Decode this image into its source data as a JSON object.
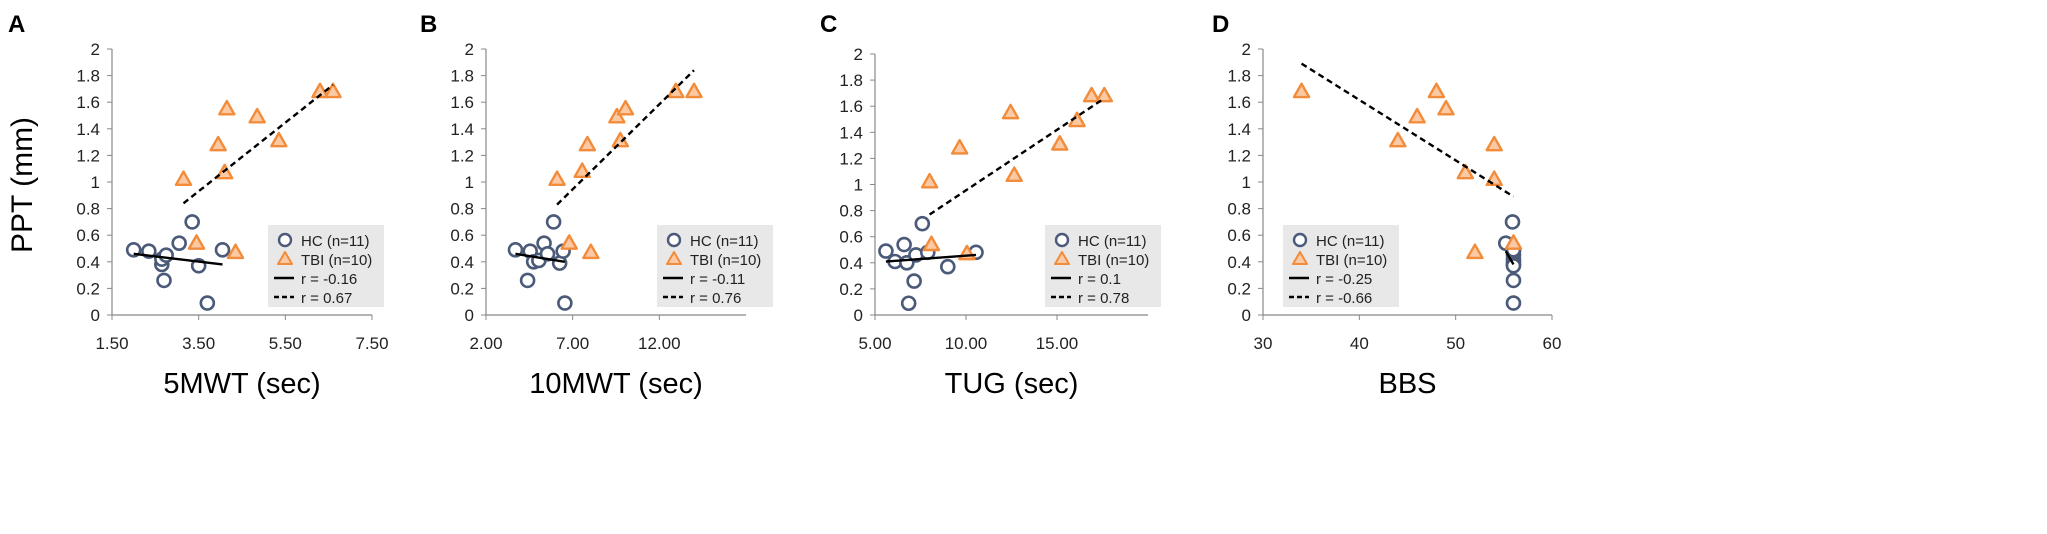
{
  "shared_ylabel": "PPT (mm)",
  "legend": {
    "hc_label": "HC (n=11)",
    "tbi_label": "TBI (n=10)"
  },
  "colors": {
    "hc": "#4a5a78",
    "tbi": "#f28c3a",
    "line": "#000000",
    "legend_bg": "#e8e8e8",
    "axis": "#888888"
  },
  "chart_data": [
    {
      "type": "scatter",
      "panel_label": "A",
      "xlabel": "5MWT (sec)",
      "ylabel": "PPT (mm)",
      "xlim": [
        1.5,
        7.5
      ],
      "xticks": [
        "1.50",
        "3.50",
        "5.50",
        "7.50"
      ],
      "ylim": [
        0,
        2
      ],
      "yticks": [
        "0",
        "0.2",
        "0.4",
        "0.6",
        "0.8",
        "1",
        "1.2",
        "1.4",
        "1.6",
        "1.8",
        "2"
      ],
      "series": [
        {
          "name": "HC (n=11)",
          "marker": "circle",
          "x": [
            2.0,
            2.35,
            2.65,
            2.65,
            2.75,
            2.7,
            3.05,
            3.35,
            3.5,
            3.7,
            4.05
          ],
          "y": [
            0.49,
            0.48,
            0.38,
            0.42,
            0.45,
            0.26,
            0.54,
            0.7,
            0.37,
            0.09,
            0.49
          ]
        },
        {
          "name": "TBI (n=10)",
          "marker": "triangle",
          "x": [
            3.15,
            3.45,
            3.95,
            4.1,
            4.15,
            4.35,
            4.85,
            5.35,
            6.3,
            6.6
          ],
          "y": [
            1.02,
            0.54,
            1.28,
            1.07,
            1.55,
            0.47,
            1.49,
            1.31,
            1.68,
            1.68
          ]
        }
      ],
      "fits": [
        {
          "series": "HC (n=11)",
          "style": "solid",
          "label": "r = -0.16",
          "x": [
            2.0,
            4.05
          ],
          "y": [
            0.46,
            0.38
          ]
        },
        {
          "series": "TBI (n=10)",
          "style": "dashed",
          "label": "r = 0.67",
          "x": [
            3.15,
            6.6
          ],
          "y": [
            0.84,
            1.73
          ]
        }
      ]
    },
    {
      "type": "scatter",
      "panel_label": "B",
      "xlabel": "10MWT (sec)",
      "ylabel": "",
      "xlim": [
        2.0,
        17.0
      ],
      "xticks": [
        "2.00",
        "7.00",
        "12.00"
      ],
      "ylim": [
        0,
        2
      ],
      "yticks": [
        "0",
        "0.2",
        "0.4",
        "0.6",
        "0.8",
        "1",
        "1.2",
        "1.4",
        "1.6",
        "1.8",
        "2"
      ],
      "series": [
        {
          "name": "HC (n=11)",
          "marker": "circle",
          "x": [
            3.7,
            4.4,
            4.55,
            4.75,
            5.05,
            5.35,
            5.55,
            5.9,
            6.25,
            6.45,
            6.55
          ],
          "y": [
            0.49,
            0.26,
            0.48,
            0.4,
            0.41,
            0.54,
            0.46,
            0.7,
            0.39,
            0.48,
            0.09
          ]
        },
        {
          "name": "TBI (n=10)",
          "marker": "triangle",
          "x": [
            6.1,
            6.8,
            7.55,
            7.85,
            8.05,
            9.55,
            9.75,
            10.05,
            12.95,
            14.0
          ],
          "y": [
            1.02,
            0.54,
            1.08,
            1.28,
            0.47,
            1.49,
            1.31,
            1.55,
            1.68,
            1.68
          ]
        }
      ],
      "fits": [
        {
          "series": "HC (n=11)",
          "style": "solid",
          "label": "r = -0.11",
          "x": [
            3.7,
            6.55
          ],
          "y": [
            0.46,
            0.4
          ]
        },
        {
          "series": "TBI (n=10)",
          "style": "dashed",
          "label": "r =  0.76",
          "x": [
            6.1,
            14.0
          ],
          "y": [
            0.83,
            1.84
          ]
        }
      ]
    },
    {
      "type": "scatter",
      "panel_label": "C",
      "xlabel": "TUG (sec)",
      "ylabel": "",
      "xlim": [
        5.0,
        20.0
      ],
      "xticks": [
        "5.00",
        "10.00",
        "15.00"
      ],
      "ylim": [
        0,
        2
      ],
      "yticks": [
        "0",
        "0.2",
        "0.4",
        "0.6",
        "0.8",
        "1",
        "1.2",
        "1.4",
        "1.6",
        "1.8",
        "2"
      ],
      "series": [
        {
          "name": "HC (n=11)",
          "marker": "circle",
          "x": [
            5.6,
            6.1,
            6.6,
            6.75,
            6.85,
            7.15,
            7.25,
            7.6,
            7.9,
            9.0,
            10.55
          ],
          "y": [
            0.49,
            0.41,
            0.54,
            0.4,
            0.09,
            0.26,
            0.46,
            0.7,
            0.48,
            0.37,
            0.48
          ]
        },
        {
          "name": "TBI (n=10)",
          "marker": "triangle",
          "x": [
            8.0,
            8.1,
            9.65,
            10.05,
            12.45,
            12.65,
            15.15,
            16.1,
            16.9,
            17.6
          ],
          "y": [
            1.02,
            0.54,
            1.28,
            0.47,
            1.55,
            1.07,
            1.31,
            1.49,
            1.68,
            1.68
          ]
        }
      ],
      "fits": [
        {
          "series": "HC (n=11)",
          "style": "solid",
          "label": "r = 0.1",
          "x": [
            5.6,
            10.55
          ],
          "y": [
            0.41,
            0.46
          ]
        },
        {
          "series": "TBI (n=10)",
          "style": "dashed",
          "label": "r = 0.78",
          "x": [
            8.0,
            17.6
          ],
          "y": [
            0.77,
            1.66
          ]
        }
      ]
    },
    {
      "type": "scatter",
      "panel_label": "D",
      "xlabel": "BBS",
      "ylabel": "",
      "xlim": [
        30,
        60
      ],
      "xticks": [
        "30",
        "40",
        "50",
        "60"
      ],
      "ylim": [
        0,
        2
      ],
      "yticks": [
        "0",
        "0.2",
        "0.4",
        "0.6",
        "0.8",
        "1",
        "1.2",
        "1.4",
        "1.6",
        "1.8",
        "2"
      ],
      "series": [
        {
          "name": "HC (n=11)",
          "marker": "circle",
          "x": [
            55.2,
            55.9,
            56,
            56,
            56,
            56,
            56,
            56,
            56,
            56,
            56
          ],
          "y": [
            0.54,
            0.7,
            0.48,
            0.45,
            0.42,
            0.4,
            0.38,
            0.37,
            0.49,
            0.26,
            0.09
          ]
        },
        {
          "name": "TBI (n=10)",
          "marker": "triangle",
          "x": [
            34,
            44,
            46,
            48,
            49,
            51,
            52,
            54,
            54,
            56
          ],
          "y": [
            1.68,
            1.31,
            1.49,
            1.68,
            1.55,
            1.07,
            0.47,
            1.28,
            1.02,
            0.54
          ]
        }
      ],
      "fits": [
        {
          "series": "HC (n=11)",
          "style": "solid",
          "label": "r = -0.25",
          "x": [
            55.2,
            56
          ],
          "y": [
            0.48,
            0.38
          ]
        },
        {
          "series": "TBI (n=10)",
          "style": "dashed",
          "label": "r = -0.66",
          "x": [
            34,
            56
          ],
          "y": [
            1.89,
            0.89
          ]
        }
      ]
    }
  ]
}
